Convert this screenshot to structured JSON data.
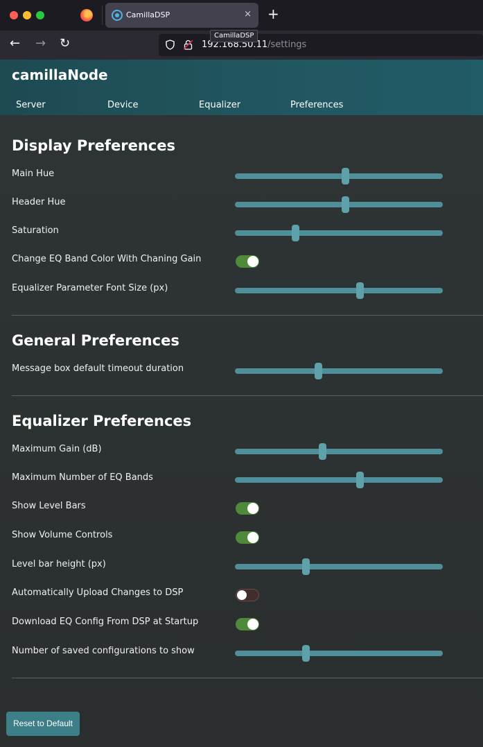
{
  "browser": {
    "tab_title": "CamillaDSP",
    "tab_close": "×",
    "new_tab": "+",
    "tooltip": "CamillaDSP",
    "url_host": "192.168.50.11",
    "url_path": "/settings",
    "back": "←",
    "forward": "→",
    "reload": "↻"
  },
  "app": {
    "title": "camillaNode",
    "nav": [
      "Server",
      "Device",
      "Equalizer",
      "Preferences"
    ]
  },
  "display_preferences": {
    "title": "Display Preferences",
    "rows": [
      {
        "label": "Main Hue",
        "type": "slider",
        "value": 0.53
      },
      {
        "label": "Header Hue",
        "type": "slider",
        "value": 0.53
      },
      {
        "label": "Saturation",
        "type": "slider",
        "value": 0.29
      },
      {
        "label": "Change EQ Band Color With Chaning Gain",
        "type": "toggle",
        "value": true
      },
      {
        "label": "Equalizer Parameter Font Size (px)",
        "type": "slider",
        "value": 0.6
      }
    ]
  },
  "general_preferences": {
    "title": "General Preferences",
    "rows": [
      {
        "label": "Message box default timeout duration",
        "type": "slider",
        "value": 0.4
      }
    ]
  },
  "equalizer_preferences": {
    "title": "Equalizer Preferences",
    "rows": [
      {
        "label": "Maximum Gain (dB)",
        "type": "slider",
        "value": 0.42
      },
      {
        "label": "Maximum Number of EQ Bands",
        "type": "slider",
        "value": 0.6
      },
      {
        "label": "Show Level Bars",
        "type": "toggle",
        "value": true
      },
      {
        "label": "Show Volume Controls",
        "type": "toggle",
        "value": true
      },
      {
        "label": "Level bar height (px)",
        "type": "slider",
        "value": 0.34
      },
      {
        "label": "Automatically Upload Changes to DSP",
        "type": "toggle",
        "value": false
      },
      {
        "label": "Download EQ Config From DSP at Startup",
        "type": "toggle",
        "value": true
      },
      {
        "label": "Number of saved configurations to show",
        "type": "slider",
        "value": 0.34
      }
    ]
  },
  "reset_button": "Reset to Default",
  "colors": {
    "header_gradient": "#215761",
    "accent": "#3d7f89",
    "toggle_on": "#4f8a3a",
    "toggle_off": "#432c2c"
  }
}
